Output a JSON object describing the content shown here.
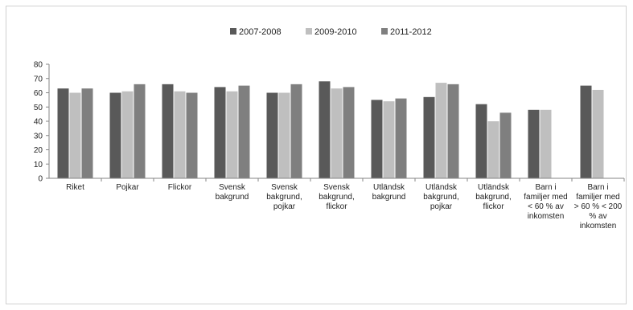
{
  "chart_data": {
    "type": "bar",
    "title": "",
    "xlabel": "",
    "ylabel": "",
    "ylim": [
      0,
      80
    ],
    "yticks": [
      0,
      10,
      20,
      30,
      40,
      50,
      60,
      70,
      80
    ],
    "grid": false,
    "legend_position": "top-center",
    "categories": [
      "Riket",
      "Pojkar",
      "Flickor",
      "Svensk bakgrund",
      "Svensk bakgrund, pojkar",
      "Svensk bakgrund, flickor",
      "Utländsk bakgrund",
      "Utländsk bakgrund, pojkar",
      "Utländsk bakgrund, flickor",
      "Barn i familjer med < 60 % av inkomsten",
      "Barn i familjer med > 60 % < 200 % av inkomsten"
    ],
    "category_lines": [
      [
        "Riket"
      ],
      [
        "Pojkar"
      ],
      [
        "Flickor"
      ],
      [
        "Svensk",
        "bakgrund"
      ],
      [
        "Svensk",
        "bakgrund,",
        "pojkar"
      ],
      [
        "Svensk",
        "bakgrund,",
        "flickor"
      ],
      [
        "Utländsk",
        "bakgrund"
      ],
      [
        "Utländsk",
        "bakgrund,",
        "pojkar"
      ],
      [
        "Utländsk",
        "bakgrund,",
        "flickor"
      ],
      [
        "Barn i",
        "familjer med",
        "< 60 % av",
        "inkomsten"
      ],
      [
        "Barn i",
        "familjer med",
        "> 60 % < 200",
        "% av",
        "inkomsten"
      ]
    ],
    "series": [
      {
        "name": "2007-2008",
        "color": "#595959",
        "values": [
          63,
          60,
          66,
          64,
          60,
          68,
          55,
          57,
          52,
          48,
          65
        ]
      },
      {
        "name": "2009-2010",
        "color": "#bfbfbf",
        "values": [
          60,
          61,
          61,
          61,
          60,
          63,
          54,
          67,
          40,
          48,
          62
        ]
      },
      {
        "name": "2011-2012",
        "color": "#7f7f7f",
        "values": [
          63,
          66,
          60,
          65,
          66,
          64,
          56,
          66,
          46,
          null,
          null
        ]
      }
    ]
  }
}
